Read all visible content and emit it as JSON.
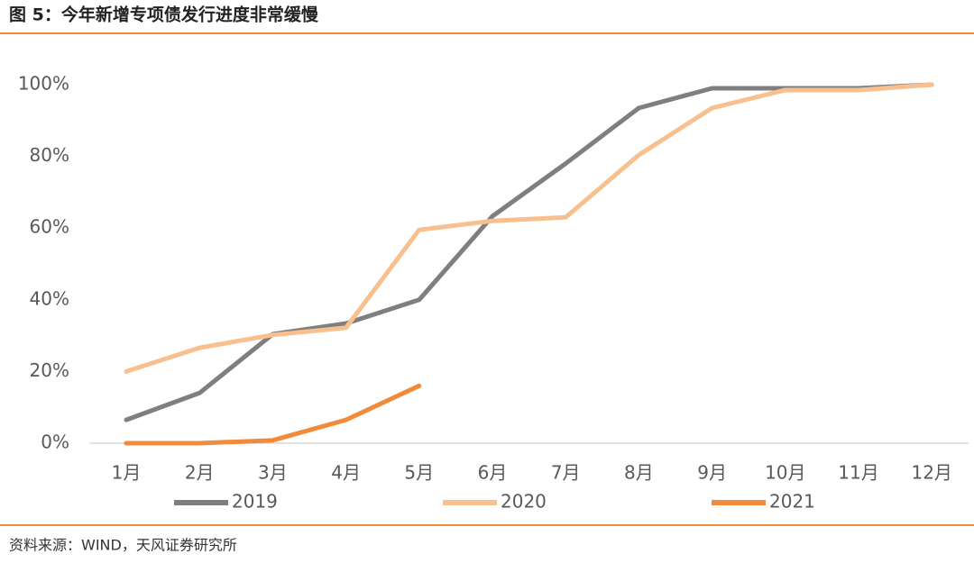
{
  "chart_data": {
    "type": "line",
    "title": "图 5：今年新增专项债发行进度非常缓慢",
    "source": "资料来源：WIND，天风证券研究所",
    "categories": [
      "1月",
      "2月",
      "3月",
      "4月",
      "5月",
      "6月",
      "7月",
      "8月",
      "9月",
      "10月",
      "11月",
      "12月"
    ],
    "series": [
      {
        "name": "2019",
        "color": "#7f7f7f",
        "values": [
          6.5,
          14,
          30.4,
          33.4,
          40,
          63.3,
          78,
          93.5,
          99,
          99,
          99,
          100
        ]
      },
      {
        "name": "2020",
        "color": "#f8c08e",
        "values": [
          20,
          26.6,
          30.2,
          32.2,
          59.5,
          62,
          63,
          80.4,
          93.5,
          98.5,
          98.5,
          100
        ]
      },
      {
        "name": "2021",
        "color": "#f08b3c",
        "values": [
          0,
          0,
          0.8,
          6.5,
          16,
          null,
          null,
          null,
          null,
          null,
          null,
          null
        ]
      }
    ],
    "ylim": [
      0,
      100
    ],
    "yticks": [
      {
        "value": 0,
        "label": "0%"
      },
      {
        "value": 20,
        "label": "20%"
      },
      {
        "value": 40,
        "label": "40%"
      },
      {
        "value": 60,
        "label": "60%"
      },
      {
        "value": 80,
        "label": "80%"
      },
      {
        "value": 100,
        "label": "100%"
      }
    ],
    "grid": false,
    "legend": "bottom"
  }
}
